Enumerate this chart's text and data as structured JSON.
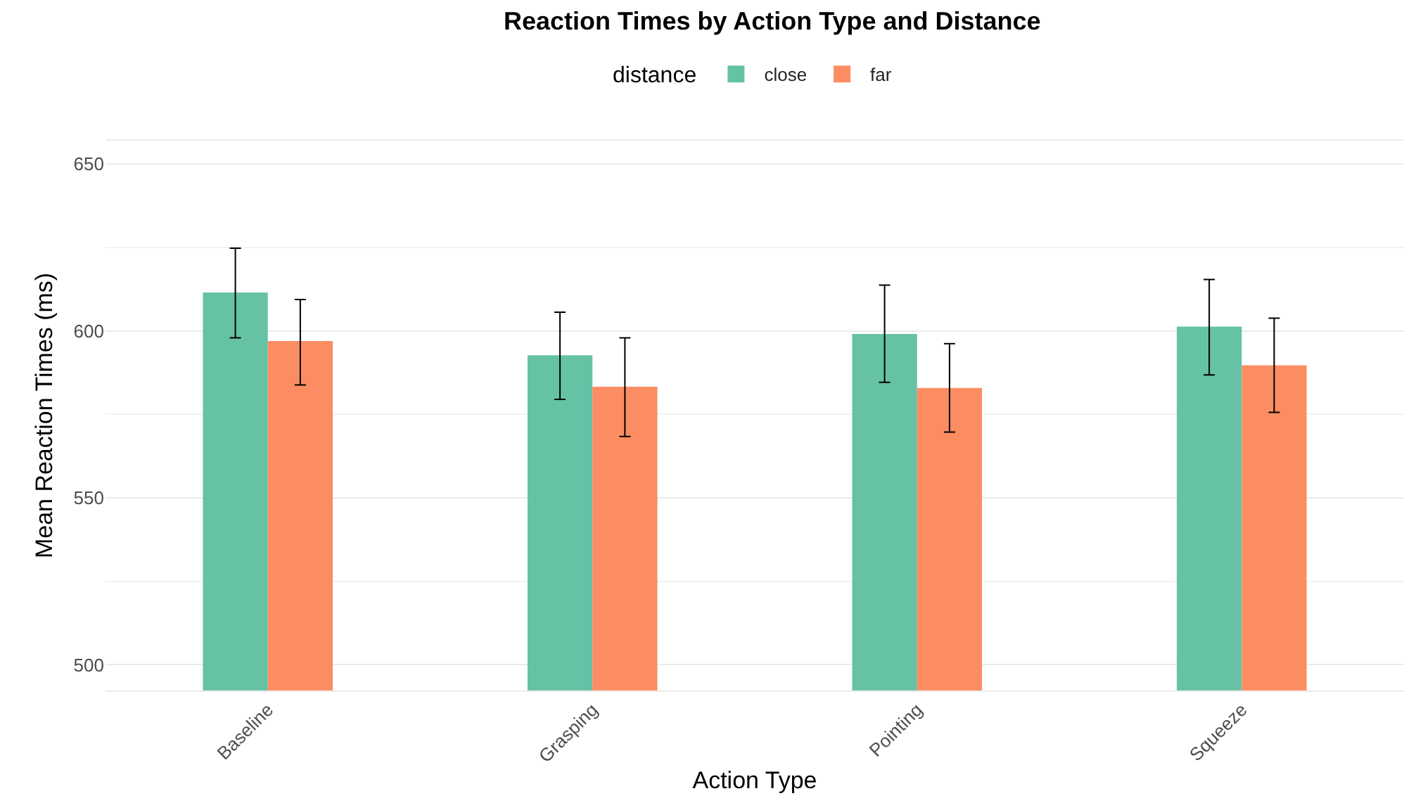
{
  "chart_data": {
    "type": "bar",
    "title": "Reaction Times by Action Type and Distance",
    "xlabel": "Action Type",
    "ylabel": "Mean Reaction Times (ms)",
    "legend_title": "distance",
    "categories": [
      "Baseline",
      "Grasping",
      "Pointing",
      "Squeeze"
    ],
    "series": [
      {
        "name": "close",
        "color": "#66c2a5",
        "values": [
          611.5,
          592.7,
          599.1,
          601.3
        ],
        "errors": [
          [
            597.9,
            624.8
          ],
          [
            579.5,
            605.6
          ],
          [
            584.6,
            613.7
          ],
          [
            586.8,
            615.4
          ]
        ]
      },
      {
        "name": "far",
        "color": "#fc8d62",
        "values": [
          597.0,
          583.3,
          582.9,
          589.7
        ],
        "errors": [
          [
            583.8,
            609.4
          ],
          [
            568.4,
            597.9
          ],
          [
            569.7,
            596.2
          ],
          [
            575.6,
            603.8
          ]
        ]
      }
    ],
    "ylim": [
      492.3,
      657
    ],
    "yticks": [
      500,
      550,
      600,
      650
    ],
    "grid": true,
    "legend": "top"
  }
}
